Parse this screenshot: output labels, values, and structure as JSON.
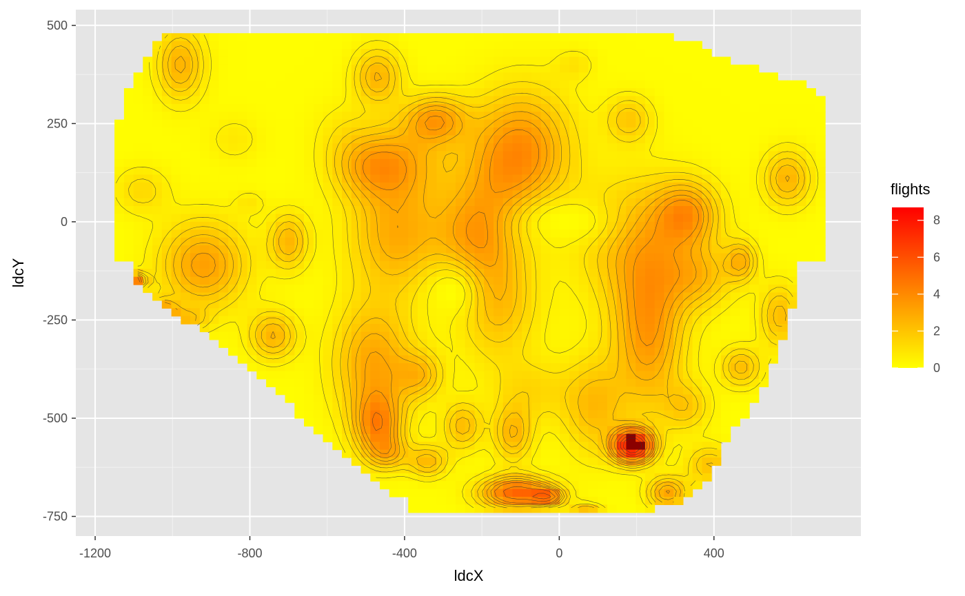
{
  "chart_data": {
    "type": "heatmap",
    "title": "",
    "xlabel": "ldcX",
    "ylabel": "ldcY",
    "xlim": [
      -1250,
      780
    ],
    "ylim": [
      -800,
      540
    ],
    "x_ticks": [
      -1200,
      -800,
      -400,
      0,
      400
    ],
    "y_ticks": [
      500,
      250,
      0,
      -250,
      -500,
      -750
    ],
    "x_tick_labels": [
      "-1200",
      "-800",
      "-400",
      "0",
      "400"
    ],
    "y_tick_labels": [
      "500",
      "250",
      "0",
      "-250",
      "-500",
      "-750"
    ],
    "grid": true,
    "contours": true,
    "legend": {
      "title": "flights",
      "position": "right",
      "range": [
        0,
        8.7
      ],
      "ticks": [
        0,
        2,
        4,
        6,
        8
      ],
      "tick_labels": [
        "0",
        "2",
        "4",
        "6",
        "8"
      ],
      "color_low": "#ffff00",
      "color_high": "#ff0000"
    },
    "colors": {
      "panel_background": "#e5e5e5",
      "grid_line": "#ffffff",
      "contour_line": "#333333",
      "low": "#ffff00",
      "high": "#ff0000",
      "max_cell": "#8b0000"
    },
    "bounds": {
      "top": 480,
      "bottom_row": -740,
      "left_edge": [
        [
          -100,
          -1150
        ],
        [
          200,
          -1150
        ],
        [
          300,
          -1130
        ],
        [
          360,
          -1100
        ],
        [
          420,
          -1060
        ],
        [
          480,
          -1020
        ]
      ],
      "lower_left_edge": [
        [
          -150,
          -1100
        ],
        [
          -300,
          -900
        ],
        [
          -420,
          -750
        ],
        [
          -520,
          -640
        ],
        [
          -600,
          -560
        ],
        [
          -660,
          -480
        ],
        [
          -720,
          -380
        ]
      ],
      "right_edge": [
        [
          -100,
          690
        ],
        [
          320,
          690
        ],
        [
          360,
          610
        ],
        [
          400,
          470
        ],
        [
          450,
          360
        ],
        [
          480,
          250
        ],
        [
          480,
          140
        ]
      ],
      "lower_right_edge": [
        [
          -200,
          610
        ],
        [
          -420,
          530
        ],
        [
          -560,
          430
        ],
        [
          -640,
          400
        ],
        [
          -720,
          300
        ],
        [
          -740,
          170
        ]
      ]
    },
    "hotspots": [
      {
        "x": -980,
        "y": 400,
        "value": 2.6,
        "rx": 60,
        "ry": 90
      },
      {
        "x": -1080,
        "y": 80,
        "value": 1.2,
        "rx": 70,
        "ry": 60
      },
      {
        "x": -920,
        "y": -110,
        "value": 3.2,
        "rx": 110,
        "ry": 110
      },
      {
        "x": -700,
        "y": -50,
        "value": 2.4,
        "rx": 50,
        "ry": 70
      },
      {
        "x": -800,
        "y": 50,
        "value": 0.7,
        "rx": 40,
        "ry": 30
      },
      {
        "x": -840,
        "y": 210,
        "value": 0.7,
        "rx": 70,
        "ry": 60
      },
      {
        "x": -1100,
        "y": -150,
        "value": 4.5,
        "rx": 30,
        "ry": 20
      },
      {
        "x": -1030,
        "y": -230,
        "value": 3.6,
        "rx": 40,
        "ry": 30
      },
      {
        "x": -740,
        "y": -290,
        "value": 2.5,
        "rx": 60,
        "ry": 60
      },
      {
        "x": -470,
        "y": 370,
        "value": 2.5,
        "rx": 60,
        "ry": 70
      },
      {
        "x": -320,
        "y": 260,
        "value": 3.0,
        "rx": 80,
        "ry": 60
      },
      {
        "x": -490,
        "y": 140,
        "value": 2.2,
        "rx": 100,
        "ry": 80
      },
      {
        "x": -400,
        "y": 160,
        "value": 1.8,
        "rx": 120,
        "ry": 100
      },
      {
        "x": -80,
        "y": 190,
        "value": 2.6,
        "rx": 120,
        "ry": 150
      },
      {
        "x": -150,
        "y": 140,
        "value": 2.0,
        "rx": 120,
        "ry": 150
      },
      {
        "x": 180,
        "y": 260,
        "value": 1.8,
        "rx": 60,
        "ry": 60
      },
      {
        "x": 40,
        "y": 400,
        "value": 0.8,
        "rx": 50,
        "ry": 40
      },
      {
        "x": -420,
        "y": -30,
        "value": 2.8,
        "rx": 120,
        "ry": 150
      },
      {
        "x": -220,
        "y": -30,
        "value": 2.6,
        "rx": 100,
        "ry": 120
      },
      {
        "x": -160,
        "y": -200,
        "value": 2.3,
        "rx": 100,
        "ry": 150
      },
      {
        "x": 200,
        "y": -50,
        "value": 2.3,
        "rx": 150,
        "ry": 160
      },
      {
        "x": 230,
        "y": -280,
        "value": 3.4,
        "rx": 90,
        "ry": 200
      },
      {
        "x": 330,
        "y": 20,
        "value": 3.2,
        "rx": 80,
        "ry": 80
      },
      {
        "x": 360,
        "y": -140,
        "value": 2.0,
        "rx": 90,
        "ry": 80
      },
      {
        "x": 470,
        "y": -100,
        "value": 2.4,
        "rx": 40,
        "ry": 50
      },
      {
        "x": 590,
        "y": 110,
        "value": 2.5,
        "rx": 60,
        "ry": 70
      },
      {
        "x": 570,
        "y": -240,
        "value": 2.2,
        "rx": 50,
        "ry": 80
      },
      {
        "x": 470,
        "y": -370,
        "value": 2.2,
        "rx": 50,
        "ry": 50
      },
      {
        "x": 330,
        "y": -470,
        "value": 1.6,
        "rx": 60,
        "ry": 60
      },
      {
        "x": -480,
        "y": -360,
        "value": 3.0,
        "rx": 100,
        "ry": 150
      },
      {
        "x": -470,
        "y": -520,
        "value": 3.6,
        "rx": 60,
        "ry": 80
      },
      {
        "x": -360,
        "y": -390,
        "value": 2.0,
        "rx": 60,
        "ry": 60
      },
      {
        "x": -250,
        "y": -520,
        "value": 2.2,
        "rx": 50,
        "ry": 60
      },
      {
        "x": -120,
        "y": -540,
        "value": 2.4,
        "rx": 50,
        "ry": 70
      },
      {
        "x": -70,
        "y": -430,
        "value": 1.2,
        "rx": 100,
        "ry": 80
      },
      {
        "x": 90,
        "y": -470,
        "value": 2.2,
        "rx": 80,
        "ry": 120
      },
      {
        "x": -440,
        "y": -590,
        "value": 1.8,
        "rx": 50,
        "ry": 40
      },
      {
        "x": -340,
        "y": -610,
        "value": 2.3,
        "rx": 50,
        "ry": 40
      },
      {
        "x": -110,
        "y": -690,
        "value": 5.2,
        "rx": 90,
        "ry": 40
      },
      {
        "x": -30,
        "y": -700,
        "value": 3.8,
        "rx": 40,
        "ry": 20
      },
      {
        "x": 70,
        "y": -740,
        "value": 2.6,
        "rx": 40,
        "ry": 20
      },
      {
        "x": 190,
        "y": -570,
        "value": 8.7,
        "rx": 50,
        "ry": 40
      },
      {
        "x": 280,
        "y": -690,
        "value": 3.0,
        "rx": 50,
        "ry": 40
      },
      {
        "x": 390,
        "y": -620,
        "value": 2.0,
        "rx": 60,
        "ry": 50
      },
      {
        "x": -960,
        "y": -250,
        "value": 1.6,
        "rx": 50,
        "ry": 30
      },
      {
        "x": -560,
        "y": 230,
        "value": 0.6,
        "rx": 80,
        "ry": 80
      }
    ],
    "cold_spots": [
      {
        "x": -280,
        "y": -180,
        "rx": 70,
        "ry": 70
      },
      {
        "x": 20,
        "y": 0,
        "rx": 120,
        "ry": 60
      }
    ]
  }
}
